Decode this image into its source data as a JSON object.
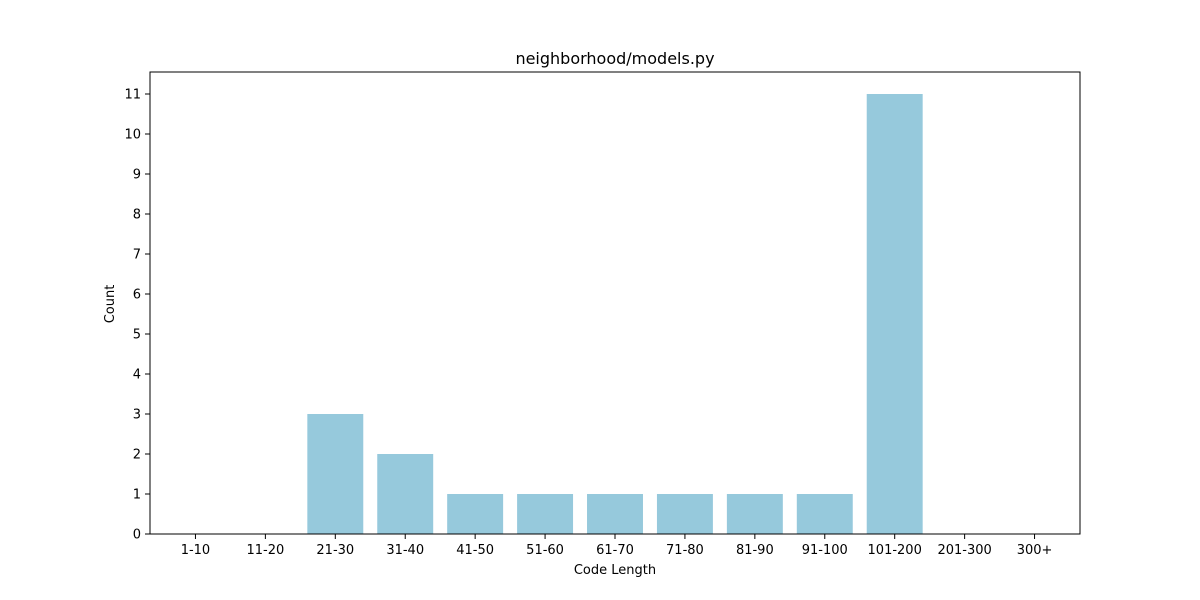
{
  "chart_data": {
    "type": "bar",
    "title": "neighborhood/models.py",
    "xlabel": "Code Length",
    "ylabel": "Count",
    "categories": [
      "1-10",
      "11-20",
      "21-30",
      "31-40",
      "41-50",
      "51-60",
      "61-70",
      "71-80",
      "81-90",
      "91-100",
      "101-200",
      "201-300",
      "300+"
    ],
    "values": [
      0,
      0,
      3,
      2,
      1,
      1,
      1,
      1,
      1,
      1,
      11,
      0,
      0
    ],
    "ylim": [
      0,
      11.55
    ],
    "yticks": [
      0,
      1,
      2,
      3,
      4,
      5,
      6,
      7,
      8,
      9,
      10,
      11
    ],
    "bar_color": "#96c9dc",
    "grid": false,
    "legend": "none"
  }
}
